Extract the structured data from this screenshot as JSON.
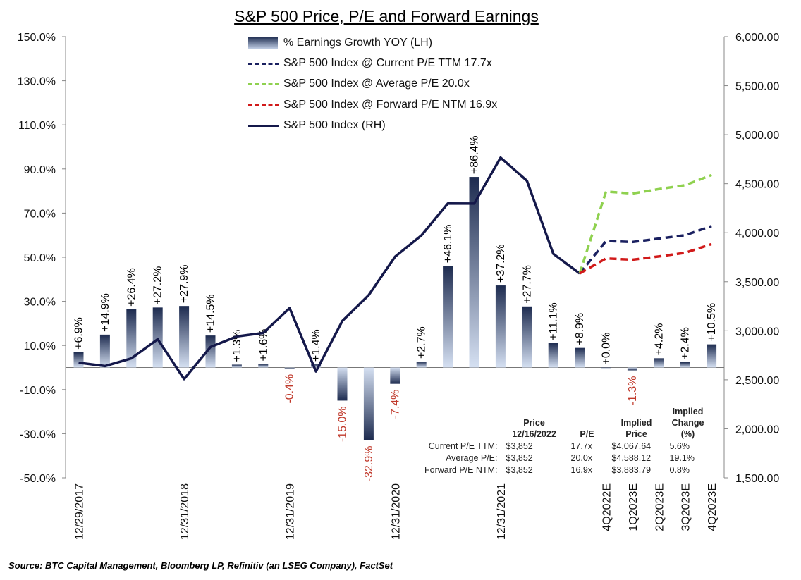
{
  "title": "S&P 500 Price, P/E and Forward Earnings",
  "source": "Source: BTC Capital Management, Bloomberg LP, Refinitiv (an LSEG Company), FactSet",
  "legend": [
    {
      "label": "% Earnings Growth YOY (LH)",
      "kind": "bar"
    },
    {
      "label": "S&P 500 Index @ Current P/E TTM 17.7x",
      "kind": "dash",
      "color": "#1a2060"
    },
    {
      "label": "S&P 500 Index @ Average P/E 20.0x",
      "kind": "dash",
      "color": "#8fd14f"
    },
    {
      "label": "S&P 500 Index @ Forward P/E NTM 16.9x",
      "kind": "dash",
      "color": "#d11a1a"
    },
    {
      "label": "S&P 500 Index (RH)",
      "kind": "solid",
      "color": "#14184a"
    }
  ],
  "chart_data": {
    "type": "bar+line",
    "title": "S&P 500 Price, P/E and Forward Earnings",
    "left_axis": {
      "min": -50,
      "max": 150,
      "step": 20,
      "tick_labels": [
        "150.0%",
        "130.0%",
        "110.0%",
        "90.0%",
        "70.0%",
        "50.0%",
        "30.0%",
        "10.0%",
        "-10.0%",
        "-30.0%",
        "-50.0%"
      ]
    },
    "right_axis": {
      "min": 1500,
      "max": 6000,
      "step": 500,
      "tick_labels": [
        "6,000.00",
        "5,500.00",
        "5,000.00",
        "4,500.00",
        "4,000.00",
        "3,500.00",
        "3,000.00",
        "2,500.00",
        "2,000.00",
        "1,500.00"
      ]
    },
    "x_labels": [
      "12/29/2017",
      "12/31/2018",
      "12/31/2019",
      "12/31/2020",
      "12/31/2021",
      "4Q2022E",
      "1Q2023E",
      "2Q2023E",
      "3Q2023E",
      "4Q2023E"
    ],
    "x_label_positions": [
      0,
      4,
      8,
      12,
      16,
      20,
      21,
      22,
      23,
      24
    ],
    "earnings_growth": {
      "name": "% Earnings Growth YOY (LH)",
      "values": [
        6.9,
        14.9,
        26.4,
        27.2,
        27.9,
        14.5,
        1.3,
        1.6,
        -0.4,
        1.4,
        -15.0,
        -32.9,
        -7.4,
        2.7,
        46.1,
        86.4,
        37.2,
        27.7,
        11.1,
        8.9,
        0.0,
        -1.3,
        4.2,
        2.4,
        10.5
      ],
      "labels": [
        "+6.9%",
        "+14.9%",
        "+26.4%",
        "+27.2%",
        "+27.9%",
        "+14.5%",
        "+1.3%",
        "+1.6%",
        "-0.4%",
        "+1.4%",
        "-15.0%",
        "-32.9%",
        "-7.4%",
        "+2.7%",
        "+46.1%",
        "+86.4%",
        "+37.2%",
        "+27.7%",
        "+11.1%",
        "+8.9%",
        "+0.0%",
        "-1.3%",
        "+4.2%",
        "+2.4%",
        "+10.5%"
      ]
    },
    "sp500": {
      "name": "S&P 500 Index (RH)",
      "color": "#14184a",
      "values": [
        2674,
        2640,
        2718,
        2914,
        2507,
        2834,
        2942,
        2977,
        3231,
        2585,
        3100,
        3363,
        3756,
        3973,
        4298,
        4297,
        4766,
        4530,
        3785,
        3585
      ]
    },
    "projections": [
      {
        "name": "S&P 500 Index @ Current P/E TTM 17.7x",
        "color": "#1a2060",
        "values": [
          3585,
          3915,
          3905,
          3940,
          3975,
          4068
        ]
      },
      {
        "name": "S&P 500 Index @ Average P/E 20.0x",
        "color": "#8fd14f",
        "values": [
          3585,
          4420,
          4400,
          4445,
          4485,
          4588
        ]
      },
      {
        "name": "S&P 500 Index @ Forward P/E NTM 16.9x",
        "color": "#d11a1a",
        "values": [
          3585,
          3738,
          3725,
          3758,
          3795,
          3884
        ]
      }
    ],
    "projection_start_index": 19,
    "positive_label_color": "#000000",
    "negative_label_color": "#c0392b"
  },
  "implied_table": {
    "headers": [
      "",
      "Price 12/16/2022",
      "P/E",
      "Implied Price",
      "Implied Change (%)"
    ],
    "rows": [
      {
        "label": "Current P/E TTM:",
        "price": "$3,852",
        "pe": "17.7x",
        "implied": "$4,067.64",
        "change": "5.6%"
      },
      {
        "label": "Average P/E:",
        "price": "$3,852",
        "pe": "20.0x",
        "implied": "$4,588.12",
        "change": "19.1%"
      },
      {
        "label": "Forward P/E NTM:",
        "price": "$3,852",
        "pe": "16.9x",
        "implied": "$3,883.79",
        "change": "0.8%"
      }
    ]
  }
}
